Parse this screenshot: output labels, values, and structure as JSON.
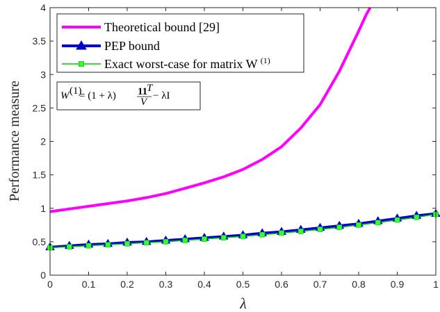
{
  "chart_data": {
    "type": "line",
    "xlabel": "λ",
    "ylabel": "Performance measure",
    "xlim": [
      0,
      1
    ],
    "ylim": [
      0,
      4
    ],
    "xticks": [
      0,
      0.1,
      0.2,
      0.3,
      0.4,
      0.5,
      0.6,
      0.7,
      0.8,
      0.9,
      1
    ],
    "xtick_labels": [
      "0",
      "0.1",
      "0.2",
      "0.3",
      "0.4",
      "0.5",
      "0.6",
      "0.7",
      "0.8",
      "0.9",
      "1"
    ],
    "yticks": [
      0,
      0.5,
      1,
      1.5,
      2,
      2.5,
      3,
      3.5,
      4
    ],
    "ytick_labels": [
      "0",
      "0.5",
      "1",
      "1.5",
      "2",
      "2.5",
      "3",
      "3.5",
      "4"
    ],
    "grid": false,
    "legend_position": "top-left",
    "series": [
      {
        "name": "Theoretical bound [29]",
        "color": "#ff00ff",
        "marker": "none",
        "x": [
          0,
          0.05,
          0.1,
          0.15,
          0.2,
          0.25,
          0.3,
          0.35,
          0.4,
          0.45,
          0.5,
          0.55,
          0.6,
          0.65,
          0.7,
          0.75,
          0.8,
          0.82,
          0.83
        ],
        "values": [
          0.95,
          0.99,
          1.03,
          1.07,
          1.11,
          1.16,
          1.22,
          1.3,
          1.38,
          1.47,
          1.58,
          1.73,
          1.92,
          2.2,
          2.55,
          3.05,
          3.65,
          3.9,
          4.0
        ]
      },
      {
        "name": "PEP bound",
        "color": "#0000cc",
        "marker": "triangle",
        "x": [
          0,
          0.05,
          0.1,
          0.15,
          0.2,
          0.25,
          0.3,
          0.35,
          0.4,
          0.45,
          0.5,
          0.55,
          0.6,
          0.65,
          0.7,
          0.75,
          0.8,
          0.85,
          0.9,
          0.95,
          1
        ],
        "values": [
          0.42,
          0.44,
          0.46,
          0.47,
          0.49,
          0.5,
          0.52,
          0.54,
          0.56,
          0.58,
          0.6,
          0.63,
          0.65,
          0.68,
          0.71,
          0.74,
          0.77,
          0.81,
          0.85,
          0.89,
          0.92
        ]
      },
      {
        "name": "Exact worst-case for matrix W",
        "name_sup": "(1)",
        "color": "#00cc00",
        "marker": "square",
        "marker_color": "#33ff33",
        "x": [
          0,
          0.05,
          0.1,
          0.15,
          0.2,
          0.25,
          0.3,
          0.35,
          0.4,
          0.45,
          0.5,
          0.55,
          0.6,
          0.65,
          0.7,
          0.75,
          0.8,
          0.85,
          0.9,
          0.95,
          1
        ],
        "values": [
          0.41,
          0.425,
          0.44,
          0.455,
          0.47,
          0.485,
          0.5,
          0.52,
          0.54,
          0.56,
          0.58,
          0.605,
          0.63,
          0.655,
          0.685,
          0.715,
          0.75,
          0.785,
          0.825,
          0.865,
          0.91
        ]
      }
    ],
    "annotation": {
      "lhs": "W",
      "lhs_sup": "(1)",
      "mid": " = (1 + λ)",
      "frac_num": "11",
      "frac_num_sup": "T",
      "frac_den": "V",
      "rhs": " − λI"
    }
  }
}
